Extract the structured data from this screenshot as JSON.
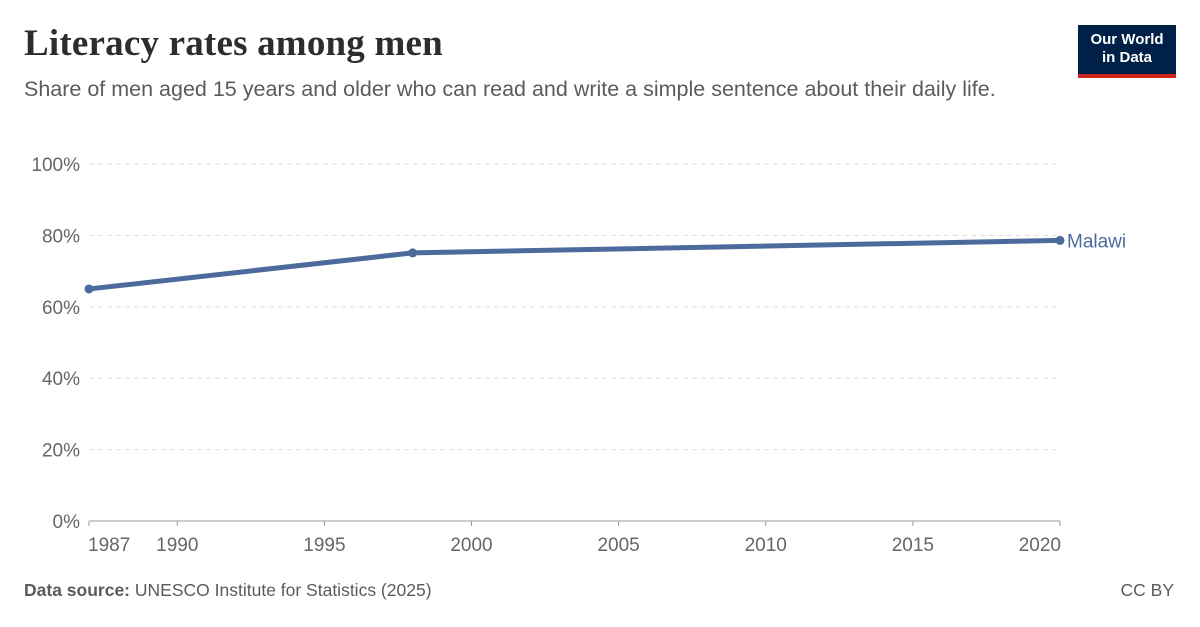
{
  "header": {
    "title": "Literacy rates among men",
    "subtitle": "Share of men aged 15 years and older who can read and write a simple sentence about their daily life."
  },
  "logo": {
    "line1": "Our World",
    "line2": "in Data"
  },
  "footer": {
    "source_label": "Data source:",
    "source_text": "UNESCO Institute for Statistics (2025)",
    "license": "CC BY"
  },
  "colors": {
    "series": "#4c6a9c",
    "grid": "#dddddd",
    "logo_bg": "#002147",
    "logo_accent": "#ce261e"
  },
  "chart_data": {
    "type": "line",
    "title": "Literacy rates among men",
    "xlabel": "",
    "ylabel": "",
    "xlim": [
      1987,
      2020
    ],
    "ylim": [
      0,
      100
    ],
    "x_ticks": [
      1987,
      1990,
      1995,
      2000,
      2005,
      2010,
      2015,
      2020
    ],
    "y_ticks": [
      0,
      20,
      40,
      60,
      80,
      100
    ],
    "y_tick_labels": [
      "0%",
      "20%",
      "40%",
      "60%",
      "80%",
      "100%"
    ],
    "grid": "horizontal dashed",
    "series": [
      {
        "name": "Malawi",
        "x": [
          1987,
          1998,
          2020
        ],
        "y": [
          65,
          75.1,
          78.6
        ]
      }
    ]
  }
}
